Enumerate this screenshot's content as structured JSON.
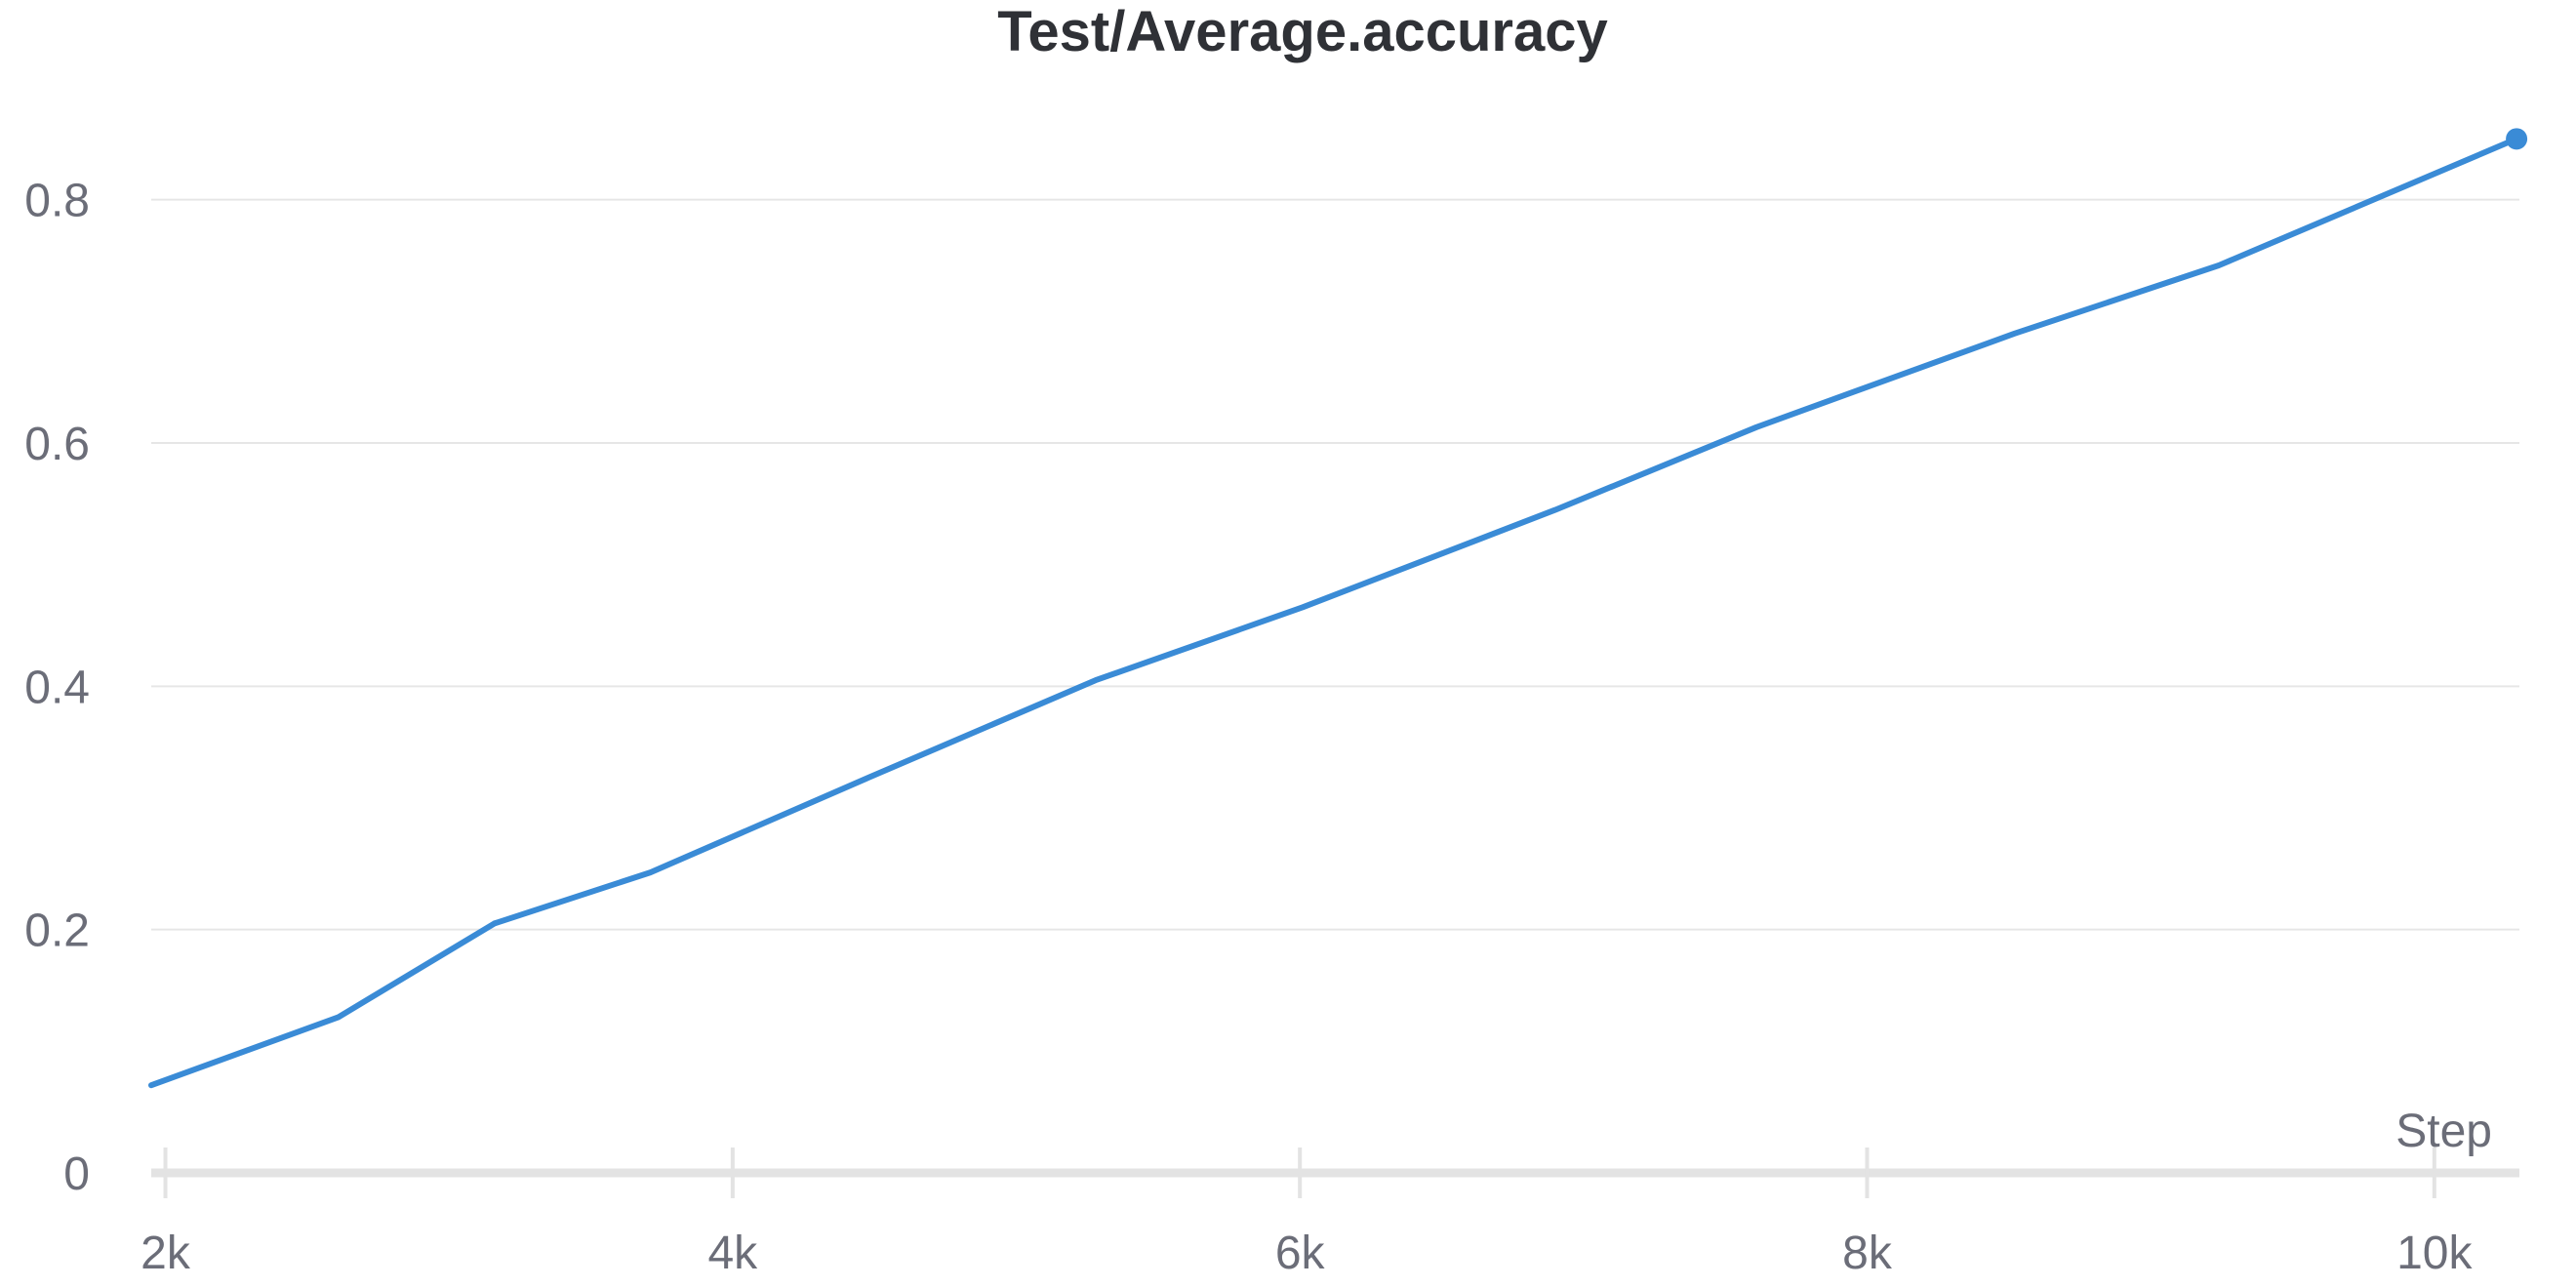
{
  "chart_data": {
    "type": "line",
    "title": "Test/Average.accuracy",
    "xlabel": "Step",
    "ylabel": "",
    "xlim": [
      1950,
      10300
    ],
    "ylim": [
      0,
      0.9
    ],
    "x_ticks": [
      2000,
      4000,
      6000,
      8000,
      10000
    ],
    "x_tick_labels": [
      "2k",
      "4k",
      "6k",
      "8k",
      "10k"
    ],
    "y_ticks": [
      0,
      0.2,
      0.4,
      0.6,
      0.8
    ],
    "y_tick_labels": [
      "0",
      "0.2",
      "0.4",
      "0.6",
      "0.8"
    ],
    "grid": true,
    "legend": "none",
    "series": [
      {
        "color": "#3a8bd6",
        "x": [
          1950,
          2610,
          3160,
          3710,
          4480,
          5280,
          6010,
          6900,
          7610,
          8520,
          9240,
          10290
        ],
        "y": [
          0.072,
          0.128,
          0.205,
          0.247,
          0.325,
          0.405,
          0.465,
          0.545,
          0.613,
          0.69,
          0.746,
          0.85
        ]
      }
    ]
  }
}
